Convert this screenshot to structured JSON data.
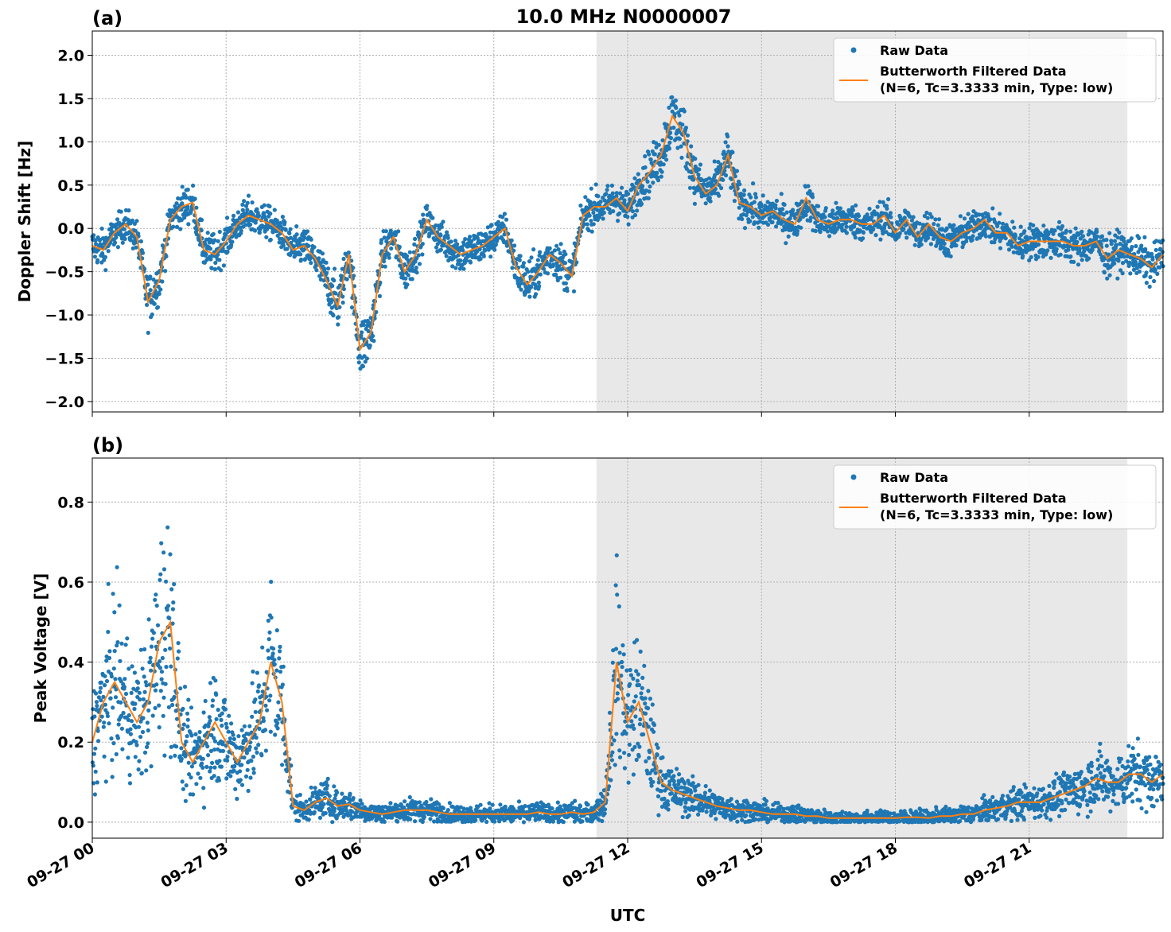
{
  "title": "10.0 MHz N0000007",
  "xlabel": "UTC",
  "x_tick_labels": [
    "09-27 00",
    "09-27 03",
    "09-27 06",
    "09-27 09",
    "09-27 12",
    "09-27 15",
    "09-27 18",
    "09-27 21"
  ],
  "colors": {
    "raw": "#1f77b4",
    "filtered": "#ff7f0e",
    "shade": "#e8e8e8",
    "grid": "#b0b0b0"
  },
  "chart_data": [
    {
      "type": "scatter",
      "panel_label": "(a)",
      "ylabel": "Doppler Shift [Hz]",
      "xlim_hours": [
        0,
        24
      ],
      "ylim": [
        -2.12,
        2.28
      ],
      "y_ticks": [
        2.0,
        1.5,
        1.0,
        0.5,
        0.0,
        -0.5,
        -1.0,
        -1.5,
        -2.0
      ],
      "y_tick_labels": [
        "2.0",
        "1.5",
        "1.0",
        "0.5",
        "0.0",
        "−0.5",
        "−1.0",
        "−1.5",
        "−2.0"
      ],
      "show_x_tick_labels": false,
      "shaded_interval_hours": [
        11.3,
        23.2
      ],
      "grid": true,
      "legend_position": "top-right",
      "legend": {
        "raw": "Raw Data",
        "filtered_line1": "Butterworth Filtered Data",
        "filtered_line2": "(N=6, Tc=3.3333 min, Type: low)"
      },
      "series": [
        {
          "name": "Butterworth Filtered Data",
          "x_hours": [
            0,
            0.25,
            0.5,
            0.75,
            1,
            1.25,
            1.5,
            1.75,
            2,
            2.25,
            2.5,
            2.75,
            3,
            3.25,
            3.5,
            3.75,
            4,
            4.25,
            4.5,
            4.75,
            5,
            5.25,
            5.5,
            5.75,
            6,
            6.25,
            6.5,
            6.75,
            7,
            7.25,
            7.5,
            7.75,
            8,
            8.25,
            8.5,
            8.75,
            9,
            9.25,
            9.5,
            9.75,
            10,
            10.25,
            10.5,
            10.75,
            11,
            11.25,
            11.5,
            11.75,
            12,
            12.25,
            12.5,
            12.75,
            13,
            13.25,
            13.5,
            13.75,
            14,
            14.25,
            14.5,
            14.75,
            15,
            15.25,
            15.5,
            15.75,
            16,
            16.25,
            16.5,
            16.75,
            17,
            17.25,
            17.5,
            17.75,
            18,
            18.25,
            18.5,
            18.75,
            19,
            19.25,
            19.5,
            19.75,
            20,
            20.25,
            20.5,
            20.75,
            21,
            21.25,
            21.5,
            21.75,
            22,
            22.25,
            22.5,
            22.75,
            23,
            23.25,
            23.5,
            23.75,
            24
          ],
          "y": [
            -0.2,
            -0.25,
            -0.05,
            0.05,
            -0.1,
            -0.85,
            -0.6,
            0.1,
            0.25,
            0.3,
            -0.25,
            -0.3,
            -0.15,
            0.05,
            0.15,
            0.1,
            0.05,
            -0.05,
            -0.25,
            -0.2,
            -0.35,
            -0.6,
            -0.9,
            -0.3,
            -1.4,
            -1.2,
            -0.3,
            -0.1,
            -0.5,
            -0.3,
            0.1,
            -0.1,
            -0.2,
            -0.3,
            -0.25,
            -0.2,
            -0.1,
            0.0,
            -0.45,
            -0.65,
            -0.5,
            -0.3,
            -0.4,
            -0.55,
            0.15,
            0.25,
            0.25,
            0.35,
            0.2,
            0.5,
            0.65,
            0.85,
            1.3,
            1.1,
            0.6,
            0.4,
            0.5,
            0.85,
            0.3,
            0.25,
            0.15,
            0.2,
            0.1,
            0.05,
            0.35,
            0.1,
            0.05,
            0.1,
            0.1,
            0.05,
            0.05,
            0.15,
            -0.05,
            0.1,
            -0.1,
            0.05,
            -0.1,
            -0.15,
            -0.05,
            0.0,
            0.1,
            -0.05,
            -0.05,
            -0.2,
            -0.15,
            -0.15,
            -0.15,
            -0.15,
            -0.2,
            -0.2,
            -0.15,
            -0.35,
            -0.25,
            -0.3,
            -0.35,
            -0.45,
            -0.3
          ]
        }
      ]
    },
    {
      "type": "scatter",
      "panel_label": "(b)",
      "ylabel": "Peak Voltage [V]",
      "xlim_hours": [
        0,
        24
      ],
      "ylim": [
        -0.04,
        0.91
      ],
      "y_ticks": [
        0.8,
        0.6,
        0.4,
        0.2,
        0.0
      ],
      "y_tick_labels": [
        "0.8",
        "0.6",
        "0.4",
        "0.2",
        "0.0"
      ],
      "show_x_tick_labels": true,
      "shaded_interval_hours": [
        11.3,
        23.2
      ],
      "grid": true,
      "legend_position": "top-right",
      "legend": {
        "raw": "Raw Data",
        "filtered_line1": "Butterworth Filtered Data",
        "filtered_line2": "(N=6, Tc=3.3333 min, Type: low)"
      },
      "series": [
        {
          "name": "Butterworth Filtered Data",
          "x_hours": [
            0,
            0.25,
            0.5,
            0.75,
            1,
            1.25,
            1.5,
            1.75,
            2,
            2.25,
            2.5,
            2.75,
            3,
            3.25,
            3.5,
            3.75,
            4,
            4.25,
            4.5,
            4.75,
            5,
            5.25,
            5.5,
            5.75,
            6,
            6.25,
            6.5,
            6.75,
            7,
            7.25,
            7.5,
            7.75,
            8,
            8.25,
            8.5,
            8.75,
            9,
            9.25,
            9.5,
            9.75,
            10,
            10.25,
            10.5,
            10.75,
            11,
            11.25,
            11.5,
            11.75,
            12,
            12.25,
            12.5,
            12.75,
            13,
            13.25,
            13.5,
            13.75,
            14,
            14.25,
            14.5,
            14.75,
            15,
            15.25,
            15.5,
            15.75,
            16,
            16.25,
            16.5,
            16.75,
            17,
            17.25,
            17.5,
            17.75,
            18,
            18.25,
            18.5,
            18.75,
            19,
            19.25,
            19.5,
            19.75,
            20,
            20.25,
            20.5,
            20.75,
            21,
            21.25,
            21.5,
            21.75,
            22,
            22.25,
            22.5,
            22.75,
            23,
            23.25,
            23.5,
            23.75,
            24
          ],
          "y": [
            0.2,
            0.3,
            0.35,
            0.3,
            0.25,
            0.3,
            0.45,
            0.5,
            0.2,
            0.15,
            0.2,
            0.25,
            0.2,
            0.15,
            0.2,
            0.25,
            0.4,
            0.3,
            0.04,
            0.03,
            0.05,
            0.06,
            0.04,
            0.045,
            0.03,
            0.025,
            0.02,
            0.025,
            0.03,
            0.03,
            0.03,
            0.025,
            0.02,
            0.02,
            0.02,
            0.02,
            0.02,
            0.02,
            0.02,
            0.02,
            0.025,
            0.02,
            0.02,
            0.025,
            0.02,
            0.025,
            0.05,
            0.4,
            0.25,
            0.3,
            0.2,
            0.1,
            0.08,
            0.07,
            0.06,
            0.05,
            0.04,
            0.035,
            0.03,
            0.03,
            0.025,
            0.02,
            0.02,
            0.02,
            0.015,
            0.015,
            0.01,
            0.01,
            0.01,
            0.01,
            0.01,
            0.01,
            0.01,
            0.012,
            0.012,
            0.01,
            0.015,
            0.015,
            0.02,
            0.02,
            0.03,
            0.035,
            0.04,
            0.05,
            0.05,
            0.05,
            0.06,
            0.07,
            0.08,
            0.09,
            0.11,
            0.1,
            0.1,
            0.12,
            0.12,
            0.1,
            0.12
          ]
        }
      ]
    }
  ]
}
